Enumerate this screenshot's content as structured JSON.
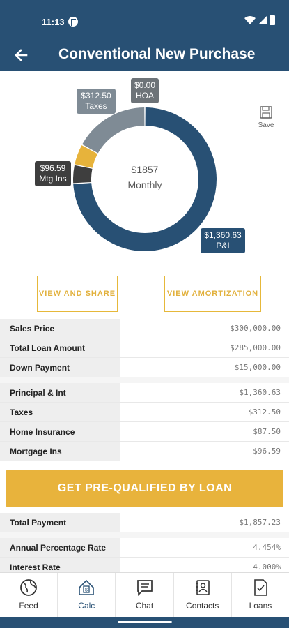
{
  "status_bar": {
    "time": "11:13"
  },
  "header": {
    "title": "Conventional New Purchase"
  },
  "chart_data": {
    "type": "pie",
    "categories": [
      "P&I",
      "Mtg Ins",
      "Taxes",
      "HOA"
    ],
    "values": [
      1360.63,
      96.59,
      312.5,
      0.0
    ],
    "colors": [
      "#285074",
      "#3e3e3e",
      "#e7b33b",
      "#7f8b95"
    ],
    "center_amount": "$1857",
    "center_label": "Monthly",
    "labels": {
      "taxes": {
        "amount": "$312.50",
        "name": "Taxes"
      },
      "hoa": {
        "amount": "$0.00",
        "name": "HOA"
      },
      "mtg_ins": {
        "amount": "$96.59",
        "name": "Mtg Ins"
      },
      "pi": {
        "amount": "$1,360.63",
        "name": "P&I"
      }
    }
  },
  "save": {
    "label": "Save"
  },
  "buttons": {
    "share": "VIEW AND SHARE",
    "amortization": "VIEW AMORTIZATION",
    "prequal": "GET PRE-QUALIFIED BY LOAN"
  },
  "table1": [
    {
      "label": "Sales Price",
      "value": "$300,000.00"
    },
    {
      "label": "Total Loan Amount",
      "value": "$285,000.00"
    },
    {
      "label": "Down Payment",
      "value": "$15,000.00"
    }
  ],
  "table2": [
    {
      "label": "Principal & Int",
      "value": "$1,360.63"
    },
    {
      "label": "Taxes",
      "value": "$312.50"
    },
    {
      "label": "Home Insurance",
      "value": "$87.50"
    },
    {
      "label": "Mortgage Ins",
      "value": "$96.59"
    }
  ],
  "table3": [
    {
      "label": "Total Payment",
      "value": "$1,857.23"
    }
  ],
  "table4": [
    {
      "label": "Annual Percentage Rate",
      "value": "4.454%"
    },
    {
      "label": "Interest Rate",
      "value": "4.000%"
    }
  ],
  "nav": [
    {
      "label": "Feed",
      "icon": "globe-icon"
    },
    {
      "label": "Calc",
      "icon": "house-calculator-icon"
    },
    {
      "label": "Chat",
      "icon": "chat-icon"
    },
    {
      "label": "Contacts",
      "icon": "contacts-icon"
    },
    {
      "label": "Loans",
      "icon": "loan-document-icon"
    }
  ]
}
